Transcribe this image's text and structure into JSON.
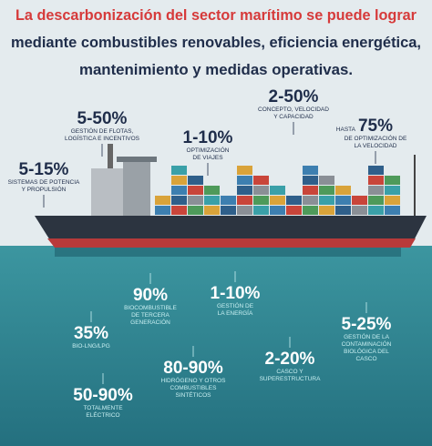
{
  "title": {
    "lines": [
      "La descarbonización del sector marítimo se puede lograr",
      "mediante combustibles renovables, eficiencia energética,",
      "mantenimiento y medidas operativas."
    ]
  },
  "above_water": [
    {
      "value": "5-50%",
      "label": [
        "GESTIÓN DE FLOTAS,",
        "LOGÍSTICA E INCENTIVOS"
      ]
    },
    {
      "value": "1-10%",
      "label": [
        "OPTIMIZACIÓN",
        "DE VIAJES"
      ]
    },
    {
      "value": "2-50%",
      "label": [
        "CONCEPTO, VELOCIDAD",
        "Y CAPACIDAD"
      ]
    },
    {
      "prefix": "HASTA",
      "value": "75%",
      "label": [
        "DE OPTIMIZACIÓN DE",
        "LA VELOCIDAD"
      ]
    },
    {
      "value": "5-15%",
      "label": [
        "SISTEMAS DE POTENCIA",
        "Y PROPULSIÓN"
      ]
    }
  ],
  "below_water": [
    {
      "value": "90%",
      "label": [
        "BIOCOMBUSTIBLE",
        "DE TERCERA",
        "GENERACIÓN"
      ]
    },
    {
      "value": "1-10%",
      "label": [
        "GESTIÓN DE",
        "LA ENERGÍA"
      ]
    },
    {
      "value": "35%",
      "label": [
        "BIO-LNG/LPG"
      ]
    },
    {
      "value": "80-90%",
      "label": [
        "HIDRÓGENO Y OTROS",
        "COMBUSTIBLES",
        "SINTÉTICOS"
      ]
    },
    {
      "value": "2-20%",
      "label": [
        "CASCO Y",
        "SUPERESTRUCTURA"
      ]
    },
    {
      "value": "5-25%",
      "label": [
        "GESTIÓN DE LA",
        "CONTAMINACIÓN",
        "BIOLÓGICA DEL",
        "CASCO"
      ]
    },
    {
      "value": "50-90%",
      "label": [
        "TOTALMENTE",
        "ELÉCTRICO"
      ]
    }
  ]
}
